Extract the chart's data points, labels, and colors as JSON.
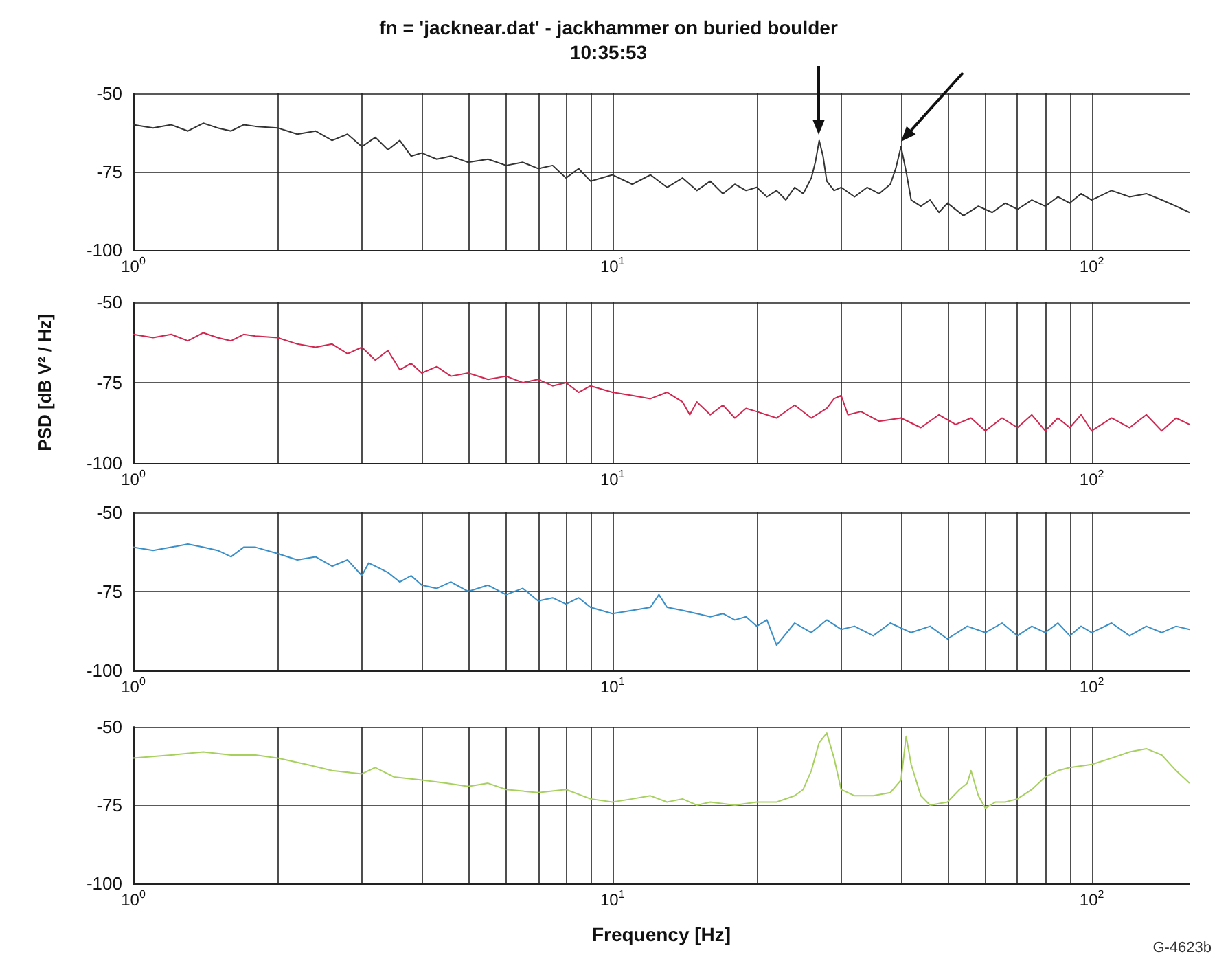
{
  "chart_data": [
    {
      "type": "line",
      "title": "fn = 'jacknear.dat' - jackhammer on buried boulder",
      "subtitle": "10:35:53",
      "xlim": [
        1,
        160
      ],
      "xticks": [
        {
          "value": 1,
          "label": "10$^{0}$"
        },
        {
          "value": 10,
          "label": "10$^{1}$"
        },
        {
          "value": 100,
          "label": "10$^{2}$"
        }
      ],
      "ylim": [
        -100,
        -50
      ],
      "yticks": [
        -100,
        -75,
        -50
      ],
      "log": "x",
      "grid": true,
      "x": [
        1,
        1.1,
        1.2,
        1.3,
        1.4,
        1.5,
        1.6,
        1.7,
        1.8,
        2,
        2.2,
        2.4,
        2.6,
        2.8,
        3,
        3.2,
        3.4,
        3.6,
        3.8,
        4,
        4.3,
        4.6,
        5,
        5.5,
        6,
        6.5,
        7,
        7.5,
        8,
        8.5,
        9,
        10,
        11,
        12,
        13,
        14,
        15,
        16,
        17,
        18,
        19,
        20,
        21,
        22,
        23,
        24,
        25,
        26,
        26.5,
        27,
        27.5,
        28,
        29,
        30,
        32,
        34,
        36,
        38,
        39,
        40,
        41,
        42,
        44,
        46,
        48,
        50,
        54,
        58,
        62,
        66,
        70,
        75,
        80,
        85,
        90,
        95,
        100,
        110,
        120,
        130,
        140,
        150,
        160
      ],
      "series": [
        {
          "color": "#333333",
          "values": [
            -60,
            -61,
            -60,
            -62,
            -59.5,
            -61,
            -62,
            -60,
            -60.5,
            -61,
            -63,
            -62,
            -65,
            -63,
            -67,
            -64,
            -68,
            -65,
            -70,
            -69,
            -71,
            -70,
            -72,
            -71,
            -73,
            -72,
            -74,
            -73,
            -77,
            -74,
            -78,
            -76,
            -79,
            -76,
            -80,
            -77,
            -81,
            -78,
            -82,
            -79,
            -81,
            -80,
            -83,
            -81,
            -84,
            -80,
            -82,
            -77,
            -72,
            -65,
            -70,
            -78,
            -81,
            -80,
            -83,
            -80,
            -82,
            -79,
            -74,
            -67,
            -75,
            -84,
            -86,
            -84,
            -88,
            -85,
            -89,
            -86,
            -88,
            -85,
            -87,
            -84,
            -86,
            -83,
            -85,
            -82,
            -84,
            -81,
            -83,
            -82,
            -84,
            -86,
            -88
          ]
        }
      ]
    },
    {
      "type": "line",
      "ylabel": "PSD [dB V² / Hz]",
      "xlim": [
        1,
        160
      ],
      "xticks": [
        {
          "value": 1,
          "label": "10$^{0}$"
        },
        {
          "value": 10,
          "label": "10$^{1}$"
        },
        {
          "value": 100,
          "label": "10$^{2}$"
        }
      ],
      "ylim": [
        -100,
        -50
      ],
      "yticks": [
        -100,
        -75,
        -50
      ],
      "log": "x",
      "grid": true,
      "x": [
        1,
        1.1,
        1.2,
        1.3,
        1.4,
        1.5,
        1.6,
        1.7,
        1.8,
        2,
        2.2,
        2.4,
        2.6,
        2.8,
        3,
        3.2,
        3.4,
        3.6,
        3.8,
        4,
        4.3,
        4.6,
        5,
        5.5,
        6,
        6.5,
        7,
        7.5,
        8,
        8.5,
        9,
        10,
        11,
        12,
        13,
        14,
        14.5,
        15,
        16,
        17,
        18,
        19,
        20,
        22,
        24,
        26,
        28,
        29,
        30,
        31,
        33,
        36,
        40,
        44,
        48,
        52,
        56,
        60,
        65,
        70,
        75,
        80,
        85,
        90,
        95,
        100,
        110,
        120,
        130,
        140,
        150,
        160
      ],
      "series": [
        {
          "color": "#d02850",
          "values": [
            -60,
            -61,
            -60,
            -62,
            -59.5,
            -61,
            -62,
            -60,
            -60.5,
            -61,
            -63,
            -64,
            -63,
            -66,
            -64,
            -68,
            -65,
            -71,
            -69,
            -72,
            -70,
            -73,
            -72,
            -74,
            -73,
            -75,
            -74,
            -76,
            -75,
            -78,
            -76,
            -78,
            -79,
            -80,
            -78,
            -81,
            -85,
            -81,
            -85,
            -82,
            -86,
            -83,
            -84,
            -86,
            -82,
            -86,
            -83,
            -80,
            -79,
            -85,
            -84,
            -87,
            -86,
            -89,
            -85,
            -88,
            -86,
            -90,
            -86,
            -89,
            -85,
            -90,
            -86,
            -89,
            -85,
            -90,
            -86,
            -89,
            -85,
            -90,
            -86,
            -88
          ]
        }
      ]
    },
    {
      "type": "line",
      "xlim": [
        1,
        160
      ],
      "xticks": [
        {
          "value": 1,
          "label": "10$^{0}$"
        },
        {
          "value": 10,
          "label": "10$^{1}$"
        },
        {
          "value": 100,
          "label": "10$^{2}$"
        }
      ],
      "ylim": [
        -100,
        -50
      ],
      "yticks": [
        -100,
        -75,
        -50
      ],
      "log": "x",
      "grid": true,
      "x": [
        1,
        1.1,
        1.2,
        1.3,
        1.4,
        1.5,
        1.6,
        1.7,
        1.8,
        2,
        2.2,
        2.4,
        2.6,
        2.8,
        3,
        3.1,
        3.2,
        3.4,
        3.6,
        3.8,
        4,
        4.3,
        4.6,
        5,
        5.5,
        6,
        6.5,
        7,
        7.5,
        8,
        8.5,
        9,
        10,
        11,
        12,
        12.5,
        13,
        14,
        15,
        16,
        17,
        18,
        19,
        20,
        21,
        22,
        24,
        26,
        28,
        30,
        32,
        35,
        38,
        42,
        46,
        50,
        55,
        60,
        65,
        70,
        75,
        80,
        85,
        90,
        95,
        100,
        110,
        120,
        130,
        140,
        150,
        160
      ],
      "series": [
        {
          "color": "#3a8fc8",
          "values": [
            -61,
            -62,
            -61,
            -60,
            -61,
            -62,
            -64,
            -61,
            -61,
            -63,
            -65,
            -64,
            -67,
            -65,
            -70,
            -66,
            -67,
            -69,
            -72,
            -70,
            -73,
            -74,
            -72,
            -75,
            -73,
            -76,
            -74,
            -78,
            -77,
            -79,
            -77,
            -80,
            -82,
            -81,
            -80,
            -76,
            -80,
            -81,
            -82,
            -83,
            -82,
            -84,
            -83,
            -86,
            -84,
            -92,
            -85,
            -88,
            -84,
            -87,
            -86,
            -89,
            -85,
            -88,
            -86,
            -90,
            -86,
            -88,
            -85,
            -89,
            -86,
            -88,
            -85,
            -89,
            -86,
            -88,
            -85,
            -89,
            -86,
            -88,
            -86,
            -87
          ]
        }
      ]
    },
    {
      "type": "line",
      "xlabel": "Frequency [Hz]",
      "annotations": [
        "G-4623b"
      ],
      "xlim": [
        1,
        160
      ],
      "xticks": [
        {
          "value": 1,
          "label": "10$^{0}$"
        },
        {
          "value": 10,
          "label": "10$^{1}$"
        },
        {
          "value": 100,
          "label": "10$^{2}$"
        }
      ],
      "ylim": [
        -100,
        -50
      ],
      "yticks": [
        -100,
        -75,
        -50
      ],
      "log": "x",
      "grid": true,
      "x": [
        1,
        1.2,
        1.4,
        1.6,
        1.8,
        2,
        2.3,
        2.6,
        3,
        3.2,
        3.5,
        4,
        4.5,
        5,
        5.5,
        6,
        7,
        8,
        9,
        10,
        11,
        12,
        13,
        14,
        15,
        16,
        18,
        20,
        22,
        24,
        25,
        26,
        27,
        28,
        29,
        30,
        32,
        35,
        38,
        40,
        41,
        42,
        44,
        46,
        50,
        53,
        55,
        56,
        58,
        60,
        63,
        66,
        70,
        75,
        80,
        85,
        90,
        100,
        110,
        120,
        130,
        140,
        150,
        160
      ],
      "series": [
        {
          "color": "#a8d060",
          "values": [
            -60,
            -59,
            -58,
            -59,
            -59,
            -60,
            -62,
            -64,
            -65,
            -63,
            -66,
            -67,
            -68,
            -69,
            -68,
            -70,
            -71,
            -70,
            -73,
            -74,
            -73,
            -72,
            -74,
            -73,
            -75,
            -74,
            -75,
            -74,
            -74,
            -72,
            -70,
            -64,
            -55,
            -52,
            -60,
            -70,
            -72,
            -72,
            -71,
            -67,
            -53,
            -62,
            -72,
            -75,
            -74,
            -70,
            -68,
            -64,
            -72,
            -76,
            -74,
            -74,
            -73,
            -70,
            -66,
            -64,
            -63,
            -62,
            -60,
            -58,
            -57,
            -59,
            -64,
            -68
          ]
        }
      ]
    }
  ]
}
